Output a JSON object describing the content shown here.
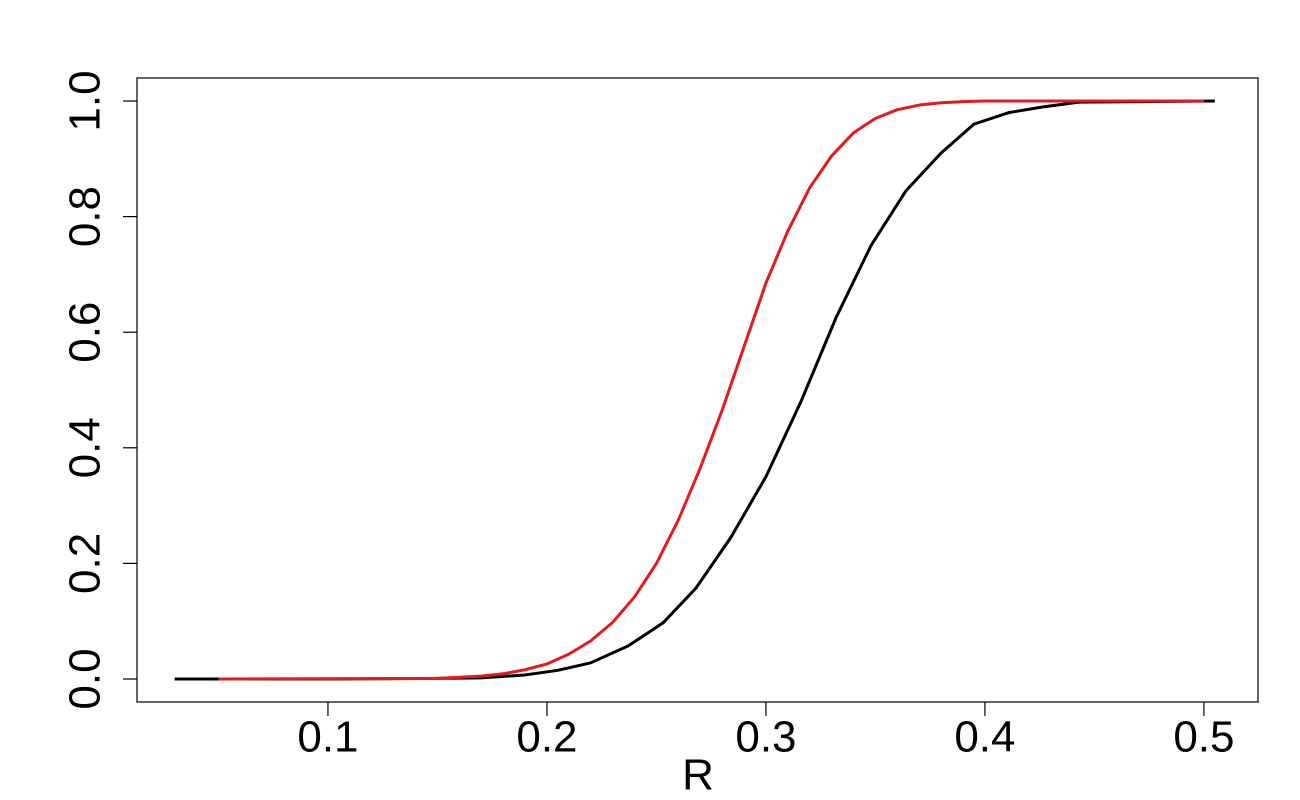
{
  "chart_data": {
    "type": "line",
    "x_label": "R",
    "series": [
      {
        "color": "#000000",
        "x": [
          0.03,
          0.1,
          0.15,
          0.17,
          0.19,
          0.205,
          0.22,
          0.237,
          0.253,
          0.268,
          0.284,
          0.3,
          0.316,
          0.332,
          0.348,
          0.364,
          0.38,
          0.395,
          0.411,
          0.427,
          0.443,
          0.505
        ],
        "values": [
          0,
          0,
          0.001,
          0.002,
          0.007,
          0.015,
          0.028,
          0.057,
          0.097,
          0.157,
          0.245,
          0.35,
          0.48,
          0.625,
          0.75,
          0.845,
          0.91,
          0.96,
          0.98,
          0.99,
          0.998,
          1.0
        ]
      },
      {
        "color": "#e41a1c",
        "x": [
          0.05,
          0.15,
          0.17,
          0.18,
          0.19,
          0.2,
          0.21,
          0.22,
          0.23,
          0.24,
          0.25,
          0.26,
          0.27,
          0.28,
          0.29,
          0.3,
          0.31,
          0.32,
          0.33,
          0.34,
          0.35,
          0.36,
          0.37,
          0.38,
          0.39,
          0.4,
          0.5
        ],
        "values": [
          0,
          0.001,
          0.005,
          0.009,
          0.016,
          0.026,
          0.043,
          0.066,
          0.098,
          0.142,
          0.2,
          0.275,
          0.365,
          0.465,
          0.575,
          0.685,
          0.775,
          0.85,
          0.905,
          0.945,
          0.97,
          0.985,
          0.993,
          0.997,
          0.999,
          1.0,
          1.0
        ]
      }
    ],
    "xlim": [
      0.0128,
      0.5247
    ],
    "xticks": [
      0.1,
      0.2,
      0.3,
      0.4,
      0.5
    ],
    "ylim": [
      -0.0398,
      1.0398
    ],
    "yticks": [
      {
        "value": 0,
        "label": "0.0"
      },
      0.2,
      0.4,
      0.6,
      0.8,
      {
        "value": 1,
        "label": "1.0"
      }
    ],
    "grid": false
  }
}
